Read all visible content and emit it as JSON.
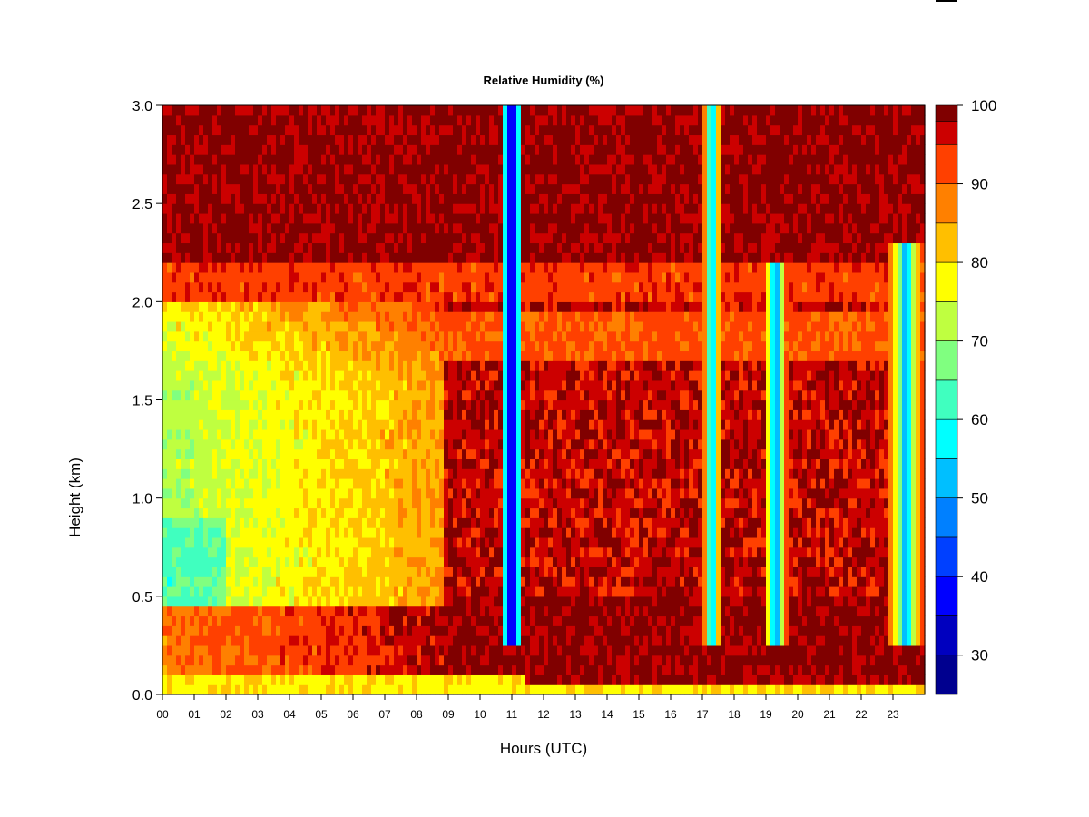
{
  "chart_data": {
    "type": "heatmap",
    "title": "Relative Humidity (%)",
    "xlabel": "Hours (UTC)",
    "ylabel": "Height (km)",
    "xlim": [
      0,
      24
    ],
    "ylim": [
      0,
      3.0
    ],
    "x_ticks": [
      "00",
      "01",
      "02",
      "03",
      "04",
      "05",
      "06",
      "07",
      "08",
      "09",
      "10",
      "11",
      "12",
      "13",
      "14",
      "15",
      "16",
      "17",
      "18",
      "19",
      "20",
      "21",
      "22",
      "23"
    ],
    "y_ticks": [
      "0.0",
      "0.5",
      "1.0",
      "1.5",
      "2.0",
      "2.5",
      "3.0"
    ],
    "colorbar": {
      "range": [
        25,
        100
      ],
      "labels": [
        "30",
        "40",
        "50",
        "60",
        "70",
        "80",
        "90",
        "100"
      ],
      "levels": [
        {
          "from": 25,
          "to": 30,
          "color": "#00008f"
        },
        {
          "from": 30,
          "to": 35,
          "color": "#0000bf"
        },
        {
          "from": 35,
          "to": 40,
          "color": "#0000ff"
        },
        {
          "from": 40,
          "to": 45,
          "color": "#0040ff"
        },
        {
          "from": 45,
          "to": 50,
          "color": "#0080ff"
        },
        {
          "from": 50,
          "to": 55,
          "color": "#00bfff"
        },
        {
          "from": 55,
          "to": 60,
          "color": "#00ffff"
        },
        {
          "from": 60,
          "to": 65,
          "color": "#40ffbf"
        },
        {
          "from": 65,
          "to": 70,
          "color": "#80ff80"
        },
        {
          "from": 70,
          "to": 75,
          "color": "#bfff40"
        },
        {
          "from": 75,
          "to": 80,
          "color": "#ffff00"
        },
        {
          "from": 80,
          "to": 85,
          "color": "#ffbf00"
        },
        {
          "from": 85,
          "to": 90,
          "color": "#ff8000"
        },
        {
          "from": 90,
          "to": 95,
          "color": "#ff4000"
        },
        {
          "from": 95,
          "to": 98,
          "color": "#cc0000"
        },
        {
          "from": 98,
          "to": 100,
          "color": "#800000"
        }
      ]
    },
    "dry_bands": [
      {
        "center_hour": 11.0,
        "half_width": 0.35,
        "height_range": [
          0.25,
          3.0
        ],
        "min_rh": 27
      },
      {
        "center_hour": 17.3,
        "half_width": 0.3,
        "height_range": [
          0.25,
          3.0
        ],
        "min_rh": 48
      },
      {
        "center_hour": 19.3,
        "half_width": 0.35,
        "height_range": [
          0.25,
          2.2
        ],
        "min_rh": 45
      },
      {
        "center_hour": 23.4,
        "half_width": 0.6,
        "height_range": [
          0.25,
          2.3
        ],
        "min_rh": 50
      }
    ]
  }
}
